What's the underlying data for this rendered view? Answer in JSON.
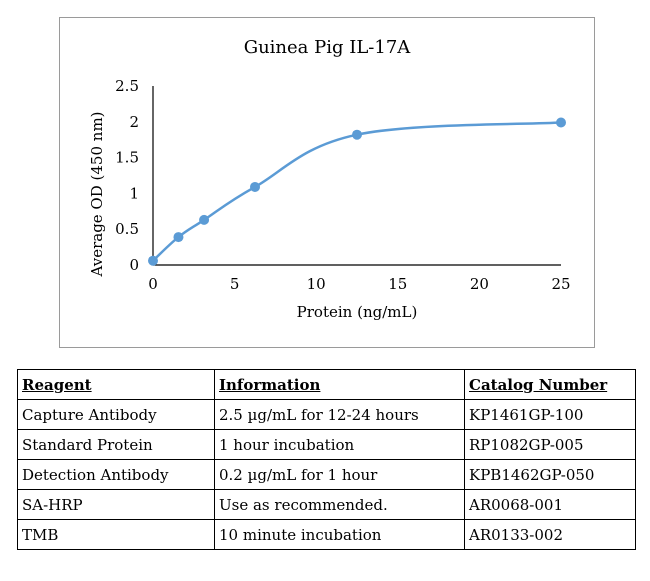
{
  "chart_data": {
    "type": "line",
    "title": "Guinea Pig  IL-17A",
    "xlabel": "Protein (ng/mL)",
    "ylabel": "Average OD (450 nm)",
    "xlim": [
      0,
      25
    ],
    "ylim": [
      0,
      2.5
    ],
    "xticks": [
      "0",
      "5",
      "10",
      "15",
      "20",
      "25"
    ],
    "yticks": [
      "0",
      "0.5",
      "1",
      "1.5",
      "2",
      "2.5"
    ],
    "grid": false,
    "legend": "none",
    "color": "#5b9bd5",
    "series": [
      {
        "x": [
          0,
          1.56,
          3.13,
          6.25,
          12.5,
          25
        ],
        "y": [
          0.06,
          0.39,
          0.63,
          1.09,
          1.82,
          1.99
        ]
      }
    ]
  },
  "table": {
    "headers": [
      "Reagent",
      "Information",
      "Catalog Number"
    ],
    "rows": [
      [
        "Capture Antibody",
        "2.5 µg/mL for 12-24 hours",
        "KP1461GP-100"
      ],
      [
        "Standard Protein",
        "1 hour incubation",
        "RP1082GP-005"
      ],
      [
        "Detection Antibody",
        "0.2 µg/mL for 1 hour",
        "KPB1462GP-050"
      ],
      [
        "SA-HRP",
        "Use as recommended.",
        "AR0068-001"
      ],
      [
        "TMB",
        "10 minute incubation",
        "AR0133-002"
      ]
    ]
  }
}
